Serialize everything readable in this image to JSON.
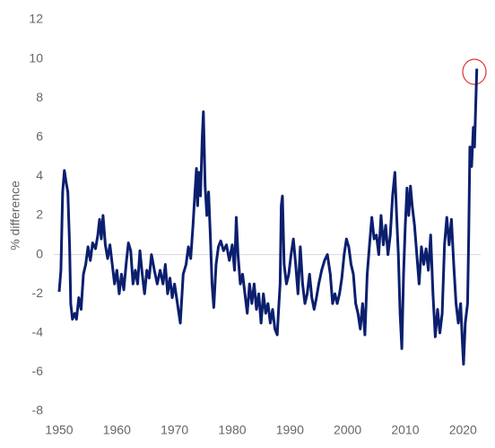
{
  "chart_data": {
    "type": "line",
    "y_label": "% difference",
    "x": [
      1950.0,
      1950.3,
      1950.6,
      1950.9,
      1951.2,
      1951.5,
      1951.8,
      1952.0,
      1952.3,
      1952.7,
      1953.0,
      1953.4,
      1953.8,
      1954.2,
      1954.6,
      1955.0,
      1955.4,
      1955.8,
      1956.3,
      1956.7,
      1957.0,
      1957.3,
      1957.6,
      1958.0,
      1958.4,
      1958.8,
      1959.2,
      1959.6,
      1960.0,
      1960.4,
      1960.8,
      1961.2,
      1961.6,
      1962.0,
      1962.4,
      1962.8,
      1963.2,
      1963.6,
      1964.0,
      1964.4,
      1964.8,
      1965.2,
      1965.6,
      1966.0,
      1966.5,
      1967.0,
      1967.5,
      1968.0,
      1968.4,
      1968.8,
      1969.2,
      1969.6,
      1970.0,
      1970.5,
      1971.0,
      1971.5,
      1972.0,
      1972.4,
      1972.8,
      1973.2,
      1973.5,
      1973.8,
      1974.0,
      1974.2,
      1974.5,
      1974.8,
      1975.0,
      1975.3,
      1975.6,
      1975.9,
      1976.2,
      1976.5,
      1976.8,
      1977.2,
      1977.6,
      1978.0,
      1978.5,
      1979.0,
      1979.5,
      1980.0,
      1980.4,
      1980.7,
      1981.0,
      1981.4,
      1981.8,
      1982.2,
      1982.6,
      1983.0,
      1983.4,
      1983.8,
      1984.2,
      1984.6,
      1985.0,
      1985.4,
      1985.8,
      1986.2,
      1986.6,
      1987.0,
      1987.4,
      1987.8,
      1988.0,
      1988.3,
      1988.5,
      1988.7,
      1989.0,
      1989.4,
      1989.8,
      1990.2,
      1990.6,
      1991.0,
      1991.4,
      1991.8,
      1992.2,
      1992.6,
      1993.0,
      1993.4,
      1993.8,
      1994.2,
      1994.6,
      1995.0,
      1995.5,
      1996.0,
      1996.5,
      1997.0,
      1997.4,
      1997.8,
      1998.2,
      1998.6,
      1999.0,
      1999.4,
      1999.8,
      2000.2,
      2000.6,
      2001.0,
      2001.4,
      2001.8,
      2002.2,
      2002.6,
      2003.0,
      2003.4,
      2003.8,
      2004.2,
      2004.6,
      2005.0,
      2005.4,
      2005.8,
      2006.2,
      2006.6,
      2007.0,
      2007.4,
      2007.8,
      2008.2,
      2008.5,
      2008.8,
      2009.1,
      2009.4,
      2009.7,
      2010.0,
      2010.3,
      2010.6,
      2010.9,
      2011.2,
      2011.6,
      2012.0,
      2012.4,
      2012.8,
      2013.2,
      2013.6,
      2014.0,
      2014.4,
      2014.8,
      2015.2,
      2015.6,
      2016.0,
      2016.4,
      2016.8,
      2017.2,
      2017.6,
      2018.0,
      2018.4,
      2018.8,
      2019.2,
      2019.6,
      2019.9,
      2020.1,
      2020.4,
      2020.8,
      2021.0,
      2021.2,
      2021.5,
      2021.8,
      2022.0,
      2022.2,
      2022.4
    ],
    "series": [
      {
        "color": "#0b1f6e",
        "values": [
          -1.9,
          -0.8,
          3.2,
          4.3,
          3.7,
          3.2,
          0.5,
          -2.5,
          -3.3,
          -3.0,
          -3.3,
          -2.2,
          -2.8,
          -1.0,
          -0.5,
          0.4,
          -0.3,
          0.6,
          0.3,
          1.0,
          1.8,
          0.8,
          2.0,
          0.5,
          -0.2,
          0.5,
          -0.5,
          -1.5,
          -0.8,
          -2.0,
          -1.0,
          -1.8,
          -0.5,
          0.6,
          0.2,
          -1.5,
          -0.8,
          -1.5,
          0.2,
          -1.0,
          -2.0,
          -0.8,
          -1.2,
          0.0,
          -0.8,
          -1.5,
          -0.8,
          -1.5,
          -0.5,
          -2.0,
          -1.2,
          -2.2,
          -1.5,
          -2.5,
          -3.5,
          -1.0,
          -0.5,
          0.4,
          -0.2,
          1.5,
          3.0,
          4.4,
          2.5,
          4.2,
          3.0,
          6.0,
          7.3,
          3.5,
          2.0,
          3.2,
          1.0,
          -1.5,
          -2.7,
          -0.5,
          0.4,
          0.7,
          0.2,
          0.5,
          -0.3,
          0.5,
          -0.8,
          1.9,
          0.0,
          -1.5,
          -1.0,
          -2.0,
          -3.0,
          -1.5,
          -2.5,
          -1.5,
          -2.8,
          -2.0,
          -3.5,
          -2.0,
          -3.0,
          -2.5,
          -3.5,
          -2.8,
          -3.8,
          -4.1,
          -3.0,
          -1.5,
          2.5,
          3.0,
          -0.5,
          -1.5,
          -1.0,
          0.0,
          0.8,
          -0.5,
          -2.0,
          0.4,
          -1.5,
          -2.5,
          -2.0,
          -1.0,
          -2.2,
          -2.8,
          -2.2,
          -1.5,
          -0.8,
          -0.3,
          0.0,
          -1.0,
          -2.5,
          -2.0,
          -2.5,
          -2.0,
          -1.2,
          0.0,
          0.8,
          0.4,
          -0.5,
          -1.0,
          -2.5,
          -3.0,
          -3.8,
          -2.5,
          -4.1,
          -1.0,
          0.5,
          1.9,
          0.8,
          1.0,
          0.0,
          2.0,
          0.5,
          1.5,
          0.0,
          1.0,
          3.0,
          4.2,
          2.0,
          0.0,
          -3.0,
          -4.8,
          -1.0,
          1.5,
          3.4,
          2.0,
          3.5,
          2.5,
          1.5,
          0.0,
          -1.5,
          0.4,
          -0.5,
          0.3,
          -0.8,
          1.0,
          -2.0,
          -4.2,
          -2.8,
          -4.0,
          -3.0,
          0.5,
          1.9,
          0.5,
          1.8,
          -0.5,
          -2.5,
          -3.5,
          -2.5,
          -4.5,
          -5.6,
          -3.5,
          -2.5,
          1.0,
          5.5,
          4.5,
          6.5,
          5.5,
          7.5,
          9.5
        ]
      }
    ],
    "xlim": [
      1950,
      2024
    ],
    "xticks": [
      1950,
      1960,
      1970,
      1980,
      1990,
      2000,
      2010,
      2020
    ],
    "ylim": [
      -8,
      12
    ],
    "yticks": [
      -8,
      -6,
      -4,
      -2,
      0,
      2,
      4,
      6,
      8,
      10,
      12
    ]
  }
}
